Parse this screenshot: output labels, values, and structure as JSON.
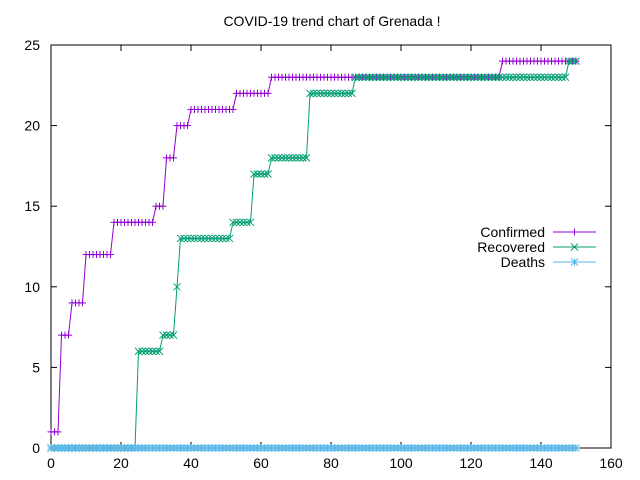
{
  "chart_data": {
    "type": "line",
    "title": "COVID-19 trend chart of Grenada !",
    "xlabel": "",
    "ylabel": "",
    "xlim": [
      0,
      160
    ],
    "ylim": [
      0,
      25
    ],
    "xticks": [
      0,
      20,
      40,
      60,
      80,
      100,
      120,
      140,
      160
    ],
    "yticks": [
      0,
      5,
      10,
      15,
      20,
      25
    ],
    "xtick_labels": [
      "0",
      "20",
      "40",
      "60",
      "80",
      "100",
      "120",
      "140",
      "160"
    ],
    "ytick_labels": [
      "0",
      "5",
      "10",
      "15",
      "20",
      "25"
    ],
    "grid": false,
    "legend_position": "right",
    "x_start": 0,
    "x_end": 150,
    "series": [
      {
        "name": "Confirmed",
        "color": "#9400d3",
        "marker": "plus",
        "steps": [
          [
            0,
            1
          ],
          [
            3,
            7
          ],
          [
            6,
            9
          ],
          [
            10,
            12
          ],
          [
            18,
            14
          ],
          [
            30,
            15
          ],
          [
            33,
            18
          ],
          [
            36,
            20
          ],
          [
            40,
            21
          ],
          [
            53,
            22
          ],
          [
            63,
            23
          ],
          [
            129,
            24
          ]
        ]
      },
      {
        "name": "Recovered",
        "color": "#009e73",
        "marker": "cross",
        "steps": [
          [
            0,
            0
          ],
          [
            25,
            6
          ],
          [
            32,
            7
          ],
          [
            36,
            10
          ],
          [
            37,
            13
          ],
          [
            52,
            14
          ],
          [
            58,
            17
          ],
          [
            63,
            18
          ],
          [
            74,
            22
          ],
          [
            87,
            23
          ],
          [
            148,
            24
          ]
        ]
      },
      {
        "name": "Deaths",
        "color": "#56b4e9",
        "marker": "star",
        "steps": [
          [
            0,
            0
          ]
        ]
      }
    ]
  }
}
